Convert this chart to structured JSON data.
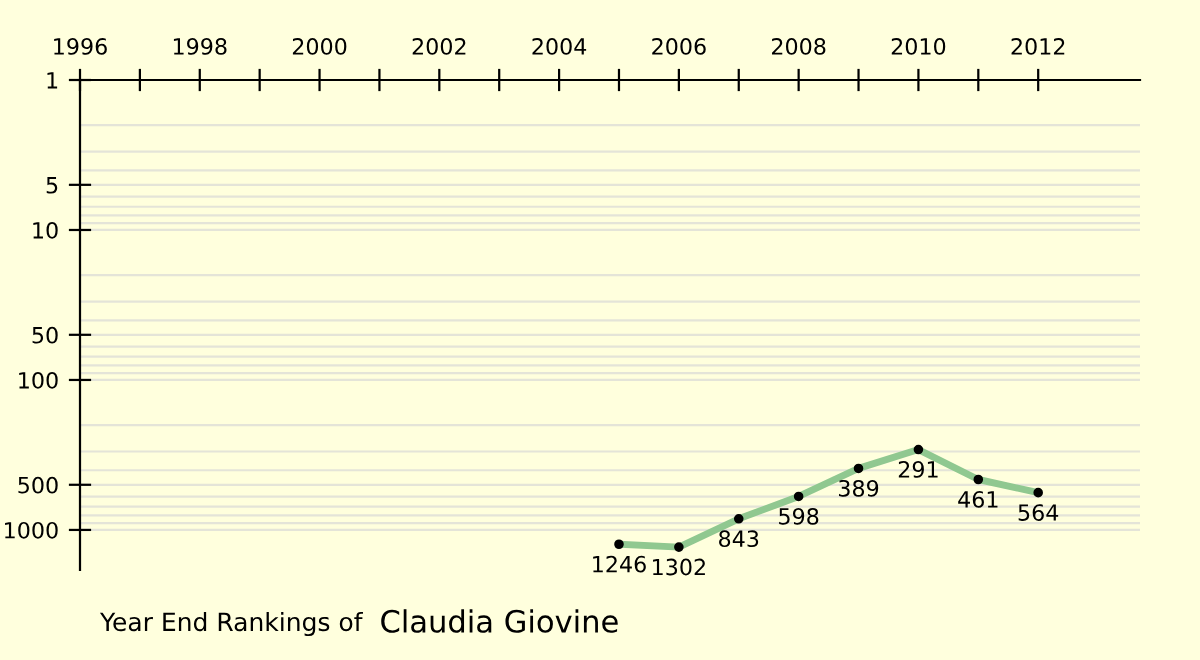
{
  "chart_data": {
    "type": "line",
    "title": "Year End Rankings of",
    "subtitle": "Claudia Giovine",
    "x": [
      2005,
      2006,
      2007,
      2008,
      2009,
      2010,
      2011,
      2012
    ],
    "series": [
      {
        "color": "#90c890",
        "values": [
          1246,
          1302,
          843,
          598,
          389,
          291,
          461,
          564
        ]
      }
    ],
    "xlim": [
      1996,
      2013.7
    ],
    "xticks": [
      1996,
      {
        "value": 1997,
        "label": null
      },
      1998,
      {
        "value": 1999,
        "label": null
      },
      2000,
      {
        "value": 2001,
        "label": null
      },
      2002,
      {
        "value": 2003,
        "label": null
      },
      2004,
      {
        "value": 2005,
        "label": null
      },
      2006,
      {
        "value": 2007,
        "label": null
      },
      2008,
      {
        "value": 2009,
        "label": null
      },
      2010,
      {
        "value": 2011,
        "label": null
      },
      2012
    ],
    "ylim": [
      1850,
      1
    ],
    "yticks": [
      1,
      5,
      10,
      50,
      100,
      500,
      1000
    ],
    "log": "y",
    "grid": "y",
    "data_labels": true,
    "marker": "circle",
    "line_style": "solid"
  }
}
